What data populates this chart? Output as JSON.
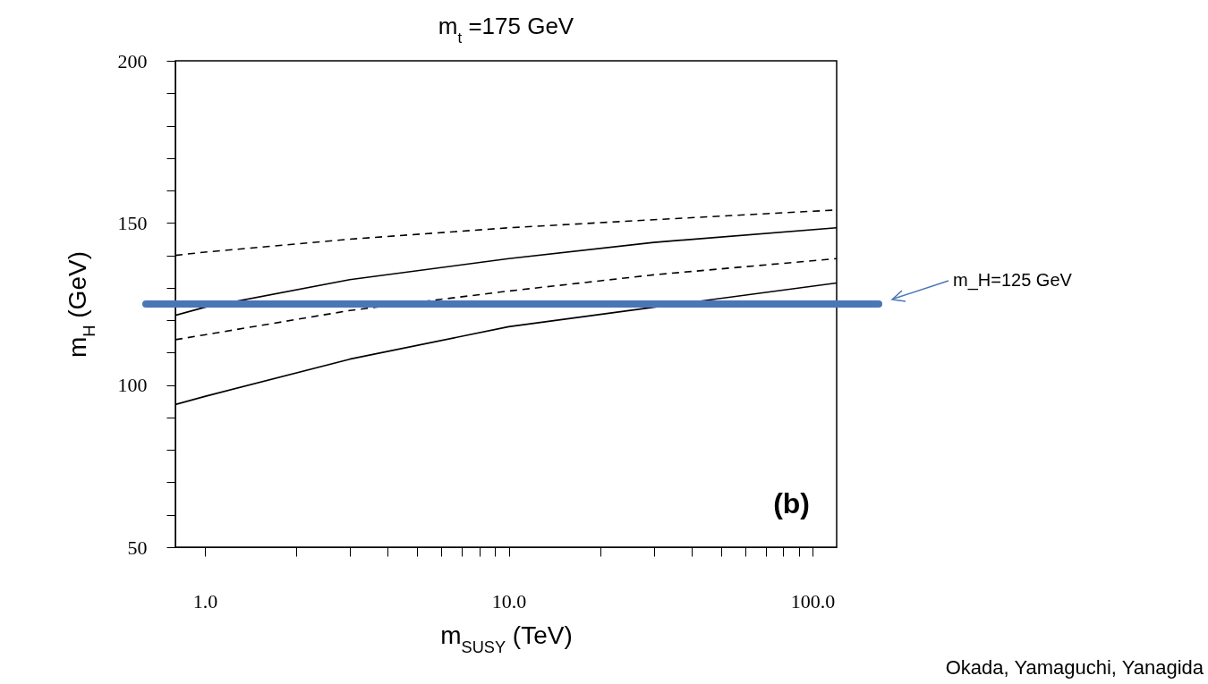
{
  "chart_data": {
    "type": "line",
    "title": "m$_{t}$ =175 GeV",
    "xlabel": "m$_{SUSY}$ (TeV)",
    "ylabel": "m$_{H}$ (GeV)",
    "log": "x",
    "grid": false,
    "xlim": [
      0.8,
      120
    ],
    "xticks": [
      {
        "value": 1,
        "label": "1.0"
      },
      {
        "value": 2,
        "label": null
      },
      {
        "value": 3,
        "label": null
      },
      {
        "value": 4,
        "label": null
      },
      {
        "value": 5,
        "label": null
      },
      {
        "value": 6,
        "label": null
      },
      {
        "value": 7,
        "label": null
      },
      {
        "value": 8,
        "label": null
      },
      {
        "value": 9,
        "label": null
      },
      {
        "value": 10,
        "label": "10.0"
      },
      {
        "value": 20,
        "label": null
      },
      {
        "value": 30,
        "label": null
      },
      {
        "value": 40,
        "label": null
      },
      {
        "value": 50,
        "label": null
      },
      {
        "value": 60,
        "label": null
      },
      {
        "value": 70,
        "label": null
      },
      {
        "value": 80,
        "label": null
      },
      {
        "value": 90,
        "label": null
      },
      {
        "value": 100,
        "label": "100.0"
      }
    ],
    "ylim": [
      50,
      200
    ],
    "yticks": [
      50,
      {
        "value": 60,
        "label": null
      },
      {
        "value": 70,
        "label": null
      },
      {
        "value": 80,
        "label": null
      },
      {
        "value": 90,
        "label": null
      },
      100,
      {
        "value": 110,
        "label": null
      },
      {
        "value": 120,
        "label": null
      },
      {
        "value": 130,
        "label": null
      },
      {
        "value": 140,
        "label": null
      },
      150,
      {
        "value": 160,
        "label": null
      },
      {
        "value": 170,
        "label": null
      },
      {
        "value": 180,
        "label": null
      },
      {
        "value": 190,
        "label": null
      },
      200
    ],
    "series": [
      {
        "color": "#000000",
        "line_style": "dashed",
        "x": [
          0.8,
          1,
          3,
          10,
          30,
          120
        ],
        "values": [
          140,
          141,
          145,
          148.5,
          151,
          154
        ]
      },
      {
        "color": "#000000",
        "line_style": "solid",
        "x": [
          0.8,
          1,
          3,
          10,
          30,
          120
        ],
        "values": [
          121.5,
          124,
          132.5,
          139,
          144,
          148.5
        ]
      },
      {
        "color": "#000000",
        "line_style": "dashed",
        "x": [
          0.8,
          1,
          3,
          10,
          30,
          120
        ],
        "values": [
          114,
          115.5,
          123,
          129,
          134,
          139
        ]
      },
      {
        "color": "#000000",
        "line_style": "solid",
        "x": [
          0.8,
          1,
          3,
          10,
          30,
          120
        ],
        "values": [
          94,
          96.5,
          108,
          118,
          124,
          131.5
        ]
      }
    ],
    "ref_lines": [
      {
        "axis": "y",
        "value": 125,
        "label": "m_H=125 GeV",
        "color": "#4a76b5"
      }
    ],
    "annotations": [
      "(b)",
      "Okada, Yamaguchi, Yanagida"
    ]
  }
}
